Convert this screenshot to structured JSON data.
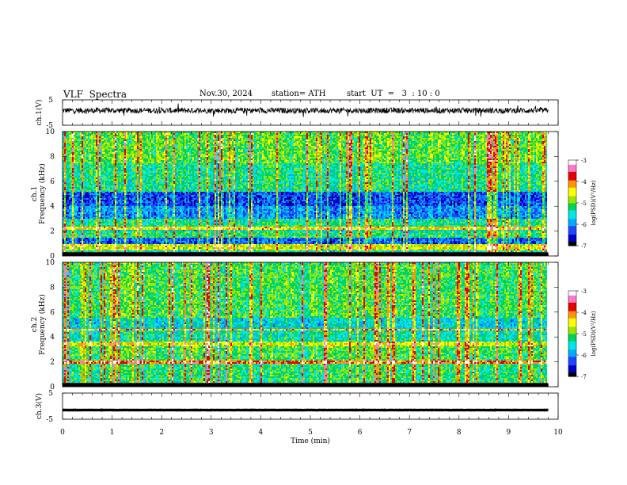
{
  "header": {
    "title": "VLF  Spectra",
    "date": "Nov.30, 2024",
    "station": "station= ATH",
    "start": "start  UT  =   3  : 10 : 0"
  },
  "colors": {
    "ink": "#000000",
    "background": "#ffffff",
    "colormap": [
      "#000000",
      "#0000c8",
      "#1e46ff",
      "#00aaff",
      "#00e6e6",
      "#00d25a",
      "#9be600",
      "#ffff00",
      "#ff9600",
      "#e60000",
      "#ff78c8",
      "#ffffff"
    ]
  },
  "chart_data": [
    {
      "type": "line",
      "panel": "ch1-waveform",
      "ylabel": "ch.1(V)",
      "ylim": [
        -5,
        5
      ],
      "yticks": [
        "5",
        "-5"
      ],
      "x_range_min": [
        0,
        9.8
      ],
      "baseline_v": 0.8,
      "amplitude_v": 1.0
    },
    {
      "type": "heatmap",
      "panel": "ch1-spectrogram",
      "ylabel_line1": "ch.1",
      "ylabel_line2": "Frequency  (kHz)",
      "ylim": [
        0,
        10
      ],
      "yticks": [
        "0",
        "2",
        "4",
        "6",
        "8",
        "10"
      ],
      "x_range_min": [
        0,
        9.8
      ],
      "zlabel": "log(PSD)(V²/Hz)",
      "zlim": [
        -7,
        -3
      ],
      "zticks": [
        "-7",
        "-6",
        "-5",
        "-4",
        "-3"
      ],
      "background_log_psd": -5.6,
      "bands": [
        {
          "f_khz": [
            0.4,
            0.9
          ],
          "log_psd": -4.6
        },
        {
          "f_khz": [
            0.9,
            1.5
          ],
          "log_psd": -6.2
        },
        {
          "f_khz": [
            1.5,
            2.0
          ],
          "log_psd": -5.2
        },
        {
          "f_khz": [
            2.1,
            2.3
          ],
          "log_psd": -4.4
        },
        {
          "f_khz": [
            2.3,
            3.0
          ],
          "log_psd": -5.3
        },
        {
          "f_khz": [
            3.0,
            4.0
          ],
          "log_psd": -6.0
        },
        {
          "f_khz": [
            4.0,
            5.2
          ],
          "log_psd": -6.3
        },
        {
          "f_khz": [
            5.2,
            7.5
          ],
          "log_psd": -5.3
        },
        {
          "f_khz": [
            7.5,
            10.0
          ],
          "log_psd": -5.0
        }
      ]
    },
    {
      "type": "heatmap",
      "panel": "ch2-spectrogram",
      "ylabel_line1": "ch.2",
      "ylabel_line2": "Frequency  (kHz)",
      "ylim": [
        0,
        10
      ],
      "yticks": [
        "0",
        "2",
        "4",
        "6",
        "8",
        "10"
      ],
      "x_range_min": [
        0,
        9.8
      ],
      "zlabel": "log(PSD)(V²/Hz)",
      "zlim": [
        -7,
        -3
      ],
      "zticks": [
        "-7",
        "-6",
        "-5",
        "-4",
        "-3"
      ],
      "background_log_psd": -5.5,
      "bands": [
        {
          "f_khz": [
            0.3,
            1.8
          ],
          "log_psd": -5.2
        },
        {
          "f_khz": [
            1.9,
            2.1
          ],
          "log_psd": -3.9
        },
        {
          "f_khz": [
            2.1,
            3.3
          ],
          "log_psd": -5.1
        },
        {
          "f_khz": [
            3.3,
            3.6
          ],
          "log_psd": -4.6
        },
        {
          "f_khz": [
            3.6,
            4.5
          ],
          "log_psd": -5.4
        },
        {
          "f_khz": [
            4.5,
            4.7
          ],
          "log_psd": -4.2
        },
        {
          "f_khz": [
            4.7,
            5.5
          ],
          "log_psd": -5.6
        },
        {
          "f_khz": [
            5.5,
            10.0
          ],
          "log_psd": -5.1
        }
      ]
    },
    {
      "type": "line",
      "panel": "ch3-waveform",
      "ylabel": "ch.3(V)",
      "ylim": [
        -5,
        5
      ],
      "yticks": [
        "5",
        "-5"
      ],
      "x_range_min": [
        0,
        9.8
      ],
      "baseline_v": -1.5,
      "amplitude_v": 0.1
    }
  ],
  "xaxis": {
    "label": "Time  (min)",
    "ticks": [
      "0",
      "1",
      "2",
      "3",
      "4",
      "5",
      "6",
      "7",
      "8",
      "9",
      "10"
    ],
    "range": [
      0,
      10
    ]
  }
}
